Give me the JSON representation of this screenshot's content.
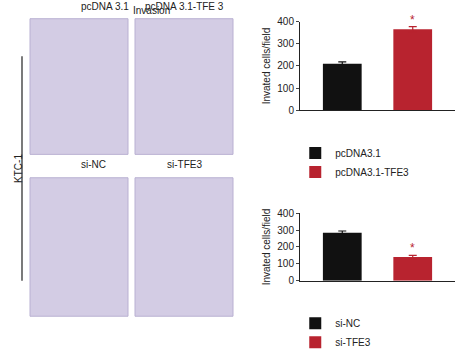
{
  "panels": {
    "title": "Invasion",
    "side_label": "KTC-1",
    "images": [
      "pcDNA 3.1",
      "pcDNA 3.1-TFE 3",
      "si-NC",
      "si-TFE3"
    ]
  },
  "chart_data": [
    {
      "type": "bar",
      "ylabel": "Invated cells/field",
      "ylim": [
        0,
        400
      ],
      "yticks": [
        0,
        100,
        200,
        300,
        400
      ],
      "grid": false,
      "legend": "bottom",
      "tick_labels": "y",
      "series": [
        {
          "name": "pcDNA3.1",
          "color": "#111111",
          "values": [
            210
          ],
          "error": [
            8
          ]
        },
        {
          "name": "pcDNA3.1-TFE3",
          "color": "#b8232f",
          "values": [
            365
          ],
          "error": [
            12
          ]
        }
      ],
      "annotations": [
        {
          "text": "*",
          "series": 1
        }
      ]
    },
    {
      "type": "bar",
      "ylabel": "Invated cells/field",
      "ylim": [
        0,
        400
      ],
      "yticks": [
        0,
        100,
        200,
        300,
        400
      ],
      "grid": false,
      "legend": "bottom",
      "tick_labels": "y",
      "series": [
        {
          "name": "si-NC",
          "color": "#111111",
          "values": [
            285
          ],
          "error": [
            10
          ]
        },
        {
          "name": "si-TFE3",
          "color": "#b8232f",
          "values": [
            140
          ],
          "error": [
            10
          ]
        }
      ],
      "annotations": [
        {
          "text": "*",
          "series": 1
        }
      ]
    }
  ]
}
